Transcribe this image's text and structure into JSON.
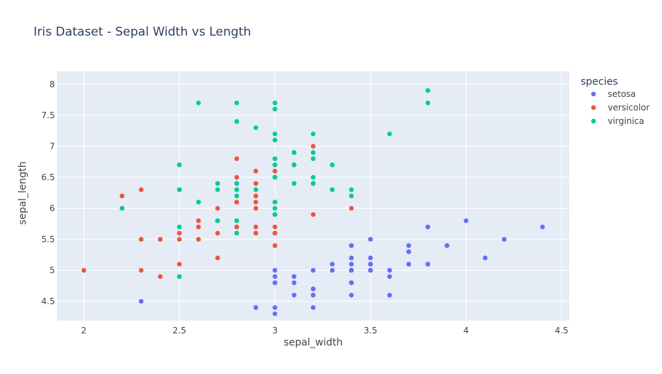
{
  "chart_data": {
    "type": "scatter",
    "title": "Iris Dataset - Sepal Width vs Length",
    "xlabel": "sepal_width",
    "ylabel": "sepal_length",
    "xlim": [
      1.86,
      4.54
    ],
    "ylim": [
      4.19,
      8.21
    ],
    "xticks": [
      2,
      2.5,
      3,
      3.5,
      4,
      4.5
    ],
    "yticks": [
      4.5,
      5,
      5.5,
      6,
      6.5,
      7,
      7.5,
      8
    ],
    "grid": true,
    "legend_title": "species",
    "legend_position": "right",
    "colors": {
      "plot_bg": "#E5ECF6",
      "grid": "#FFFFFF",
      "setosa": "#636EFA",
      "versicolor": "#EF553B",
      "virginica": "#00CC96"
    },
    "series": [
      {
        "name": "setosa",
        "points": [
          [
            3.5,
            5.1
          ],
          [
            3.0,
            4.9
          ],
          [
            3.2,
            4.7
          ],
          [
            3.1,
            4.6
          ],
          [
            3.6,
            5.0
          ],
          [
            3.9,
            5.4
          ],
          [
            3.4,
            4.6
          ],
          [
            3.4,
            5.0
          ],
          [
            2.9,
            4.4
          ],
          [
            3.1,
            4.9
          ],
          [
            3.7,
            5.4
          ],
          [
            3.4,
            4.8
          ],
          [
            3.0,
            4.8
          ],
          [
            3.0,
            4.3
          ],
          [
            4.0,
            5.8
          ],
          [
            4.4,
            5.7
          ],
          [
            3.9,
            5.4
          ],
          [
            3.5,
            5.1
          ],
          [
            3.8,
            5.7
          ],
          [
            3.8,
            5.1
          ],
          [
            3.4,
            5.4
          ],
          [
            3.7,
            5.1
          ],
          [
            3.6,
            4.6
          ],
          [
            3.3,
            5.1
          ],
          [
            3.4,
            4.8
          ],
          [
            3.0,
            5.0
          ],
          [
            3.4,
            5.0
          ],
          [
            3.5,
            5.2
          ],
          [
            3.4,
            5.2
          ],
          [
            3.2,
            4.7
          ],
          [
            3.1,
            4.8
          ],
          [
            3.4,
            5.4
          ],
          [
            4.1,
            5.2
          ],
          [
            4.2,
            5.5
          ],
          [
            3.1,
            4.9
          ],
          [
            3.2,
            5.0
          ],
          [
            3.5,
            5.5
          ],
          [
            3.6,
            4.9
          ],
          [
            3.0,
            4.4
          ],
          [
            3.4,
            5.1
          ],
          [
            3.5,
            5.0
          ],
          [
            2.3,
            4.5
          ],
          [
            3.2,
            4.4
          ],
          [
            3.5,
            5.0
          ],
          [
            3.8,
            5.1
          ],
          [
            3.0,
            4.8
          ],
          [
            3.8,
            5.1
          ],
          [
            3.2,
            4.6
          ],
          [
            3.7,
            5.3
          ],
          [
            3.3,
            5.0
          ]
        ]
      },
      {
        "name": "versicolor",
        "points": [
          [
            3.2,
            7.0
          ],
          [
            3.2,
            6.4
          ],
          [
            3.1,
            6.9
          ],
          [
            2.3,
            5.5
          ],
          [
            2.8,
            6.5
          ],
          [
            2.8,
            5.7
          ],
          [
            3.3,
            6.3
          ],
          [
            2.4,
            4.9
          ],
          [
            2.9,
            6.6
          ],
          [
            2.7,
            5.2
          ],
          [
            2.0,
            5.0
          ],
          [
            3.0,
            5.9
          ],
          [
            2.2,
            6.0
          ],
          [
            2.9,
            6.1
          ],
          [
            2.9,
            5.6
          ],
          [
            3.1,
            6.7
          ],
          [
            3.0,
            5.6
          ],
          [
            2.7,
            5.8
          ],
          [
            2.2,
            6.2
          ],
          [
            2.5,
            5.6
          ],
          [
            3.2,
            5.9
          ],
          [
            2.8,
            6.1
          ],
          [
            2.5,
            6.3
          ],
          [
            2.8,
            6.1
          ],
          [
            2.9,
            6.4
          ],
          [
            3.0,
            6.6
          ],
          [
            2.8,
            6.8
          ],
          [
            3.0,
            6.7
          ],
          [
            2.9,
            6.0
          ],
          [
            2.6,
            5.7
          ],
          [
            2.4,
            5.5
          ],
          [
            2.4,
            5.5
          ],
          [
            2.7,
            5.8
          ],
          [
            2.7,
            6.0
          ],
          [
            3.0,
            5.4
          ],
          [
            3.4,
            6.0
          ],
          [
            3.1,
            6.7
          ],
          [
            2.3,
            6.3
          ],
          [
            3.0,
            5.6
          ],
          [
            2.5,
            5.5
          ],
          [
            2.6,
            5.5
          ],
          [
            3.0,
            6.1
          ],
          [
            2.6,
            5.8
          ],
          [
            2.3,
            5.0
          ],
          [
            2.7,
            5.6
          ],
          [
            3.0,
            5.7
          ],
          [
            2.9,
            5.7
          ],
          [
            2.9,
            6.2
          ],
          [
            2.5,
            5.1
          ],
          [
            2.8,
            5.7
          ]
        ]
      },
      {
        "name": "virginica",
        "points": [
          [
            3.3,
            6.3
          ],
          [
            2.7,
            5.8
          ],
          [
            3.0,
            7.1
          ],
          [
            2.9,
            6.3
          ],
          [
            3.0,
            6.5
          ],
          [
            3.0,
            7.6
          ],
          [
            2.5,
            4.9
          ],
          [
            2.9,
            7.3
          ],
          [
            2.5,
            6.7
          ],
          [
            3.6,
            7.2
          ],
          [
            3.2,
            6.5
          ],
          [
            2.7,
            6.4
          ],
          [
            3.0,
            6.8
          ],
          [
            2.5,
            5.7
          ],
          [
            2.8,
            5.8
          ],
          [
            3.2,
            6.4
          ],
          [
            3.0,
            6.5
          ],
          [
            3.8,
            7.7
          ],
          [
            2.6,
            7.7
          ],
          [
            2.2,
            6.0
          ],
          [
            3.2,
            6.9
          ],
          [
            2.8,
            5.6
          ],
          [
            2.8,
            7.7
          ],
          [
            2.7,
            6.3
          ],
          [
            3.3,
            6.7
          ],
          [
            3.2,
            7.2
          ],
          [
            2.8,
            6.2
          ],
          [
            3.0,
            6.1
          ],
          [
            2.8,
            6.4
          ],
          [
            3.0,
            7.2
          ],
          [
            2.8,
            7.4
          ],
          [
            3.8,
            7.9
          ],
          [
            2.8,
            6.4
          ],
          [
            2.8,
            6.3
          ],
          [
            2.6,
            6.1
          ],
          [
            3.0,
            7.7
          ],
          [
            3.4,
            6.3
          ],
          [
            3.1,
            6.4
          ],
          [
            3.0,
            6.0
          ],
          [
            3.1,
            6.9
          ],
          [
            3.1,
            6.7
          ],
          [
            3.1,
            6.9
          ],
          [
            2.7,
            5.8
          ],
          [
            3.2,
            6.8
          ],
          [
            3.3,
            6.7
          ],
          [
            3.0,
            6.7
          ],
          [
            2.5,
            6.3
          ],
          [
            3.0,
            6.5
          ],
          [
            3.4,
            6.2
          ],
          [
            3.0,
            5.9
          ]
        ]
      }
    ]
  }
}
